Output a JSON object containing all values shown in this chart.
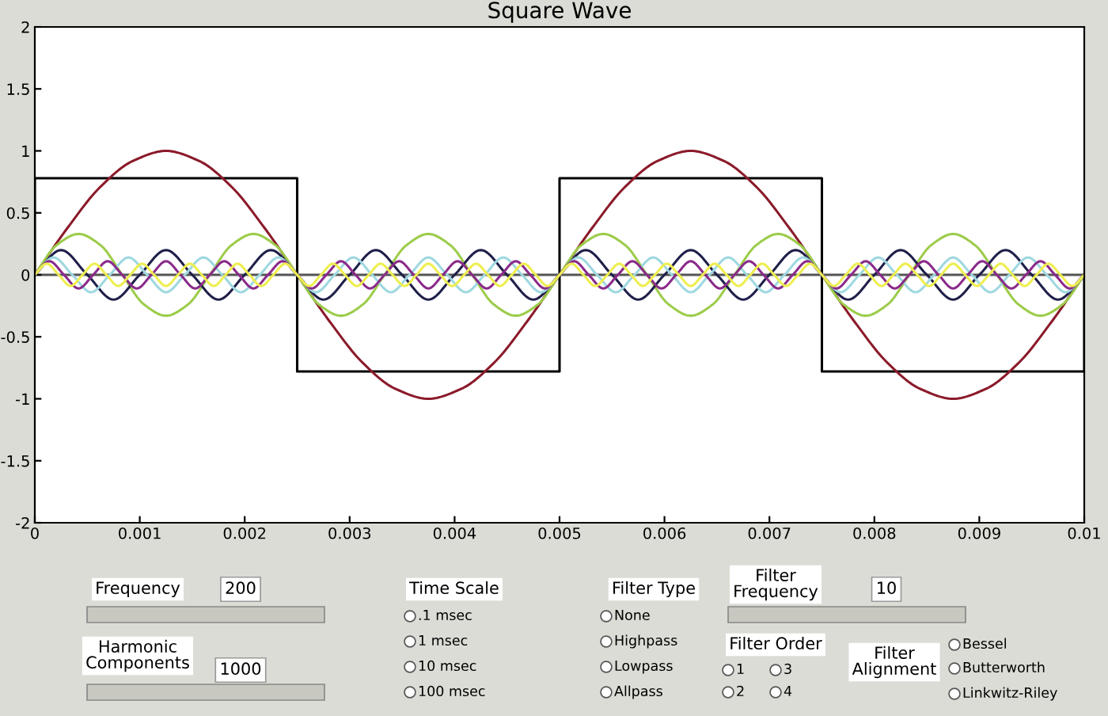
{
  "chart_data": {
    "type": "line",
    "title": "Square Wave",
    "xlim": [
      0,
      0.01
    ],
    "xticks": [
      0,
      0.001,
      0.002,
      0.003,
      0.004,
      0.005,
      0.006,
      0.007,
      0.008,
      0.009,
      0.01
    ],
    "ylim": [
      -2,
      2
    ],
    "yticks": [
      -2,
      -1.5,
      -1,
      -0.5,
      0,
      0.5,
      1,
      1.5,
      2
    ],
    "grid": false,
    "legend": false,
    "ref_lines": [
      {
        "axis": "y",
        "value": 0,
        "color": "#555555"
      }
    ],
    "series": [
      {
        "color": "#000000",
        "x": [
          0,
          0,
          0.0025,
          0.0025,
          0.005,
          0.005,
          0.0075,
          0.0075,
          0.01,
          0.01
        ],
        "values": [
          0,
          0.78,
          0.78,
          -0.78,
          -0.78,
          0.78,
          0.78,
          -0.78,
          -0.78,
          0
        ]
      },
      {
        "color": "#8b1a2a",
        "x": [
          0,
          0.0003125,
          0.000625,
          0.0009375,
          0.00125,
          0.0015625,
          0.001875,
          0.0021875,
          0.0025,
          0.0028125,
          0.003125,
          0.0034375,
          0.00375,
          0.0040625,
          0.004375,
          0.0046875,
          0.005,
          0.0053125,
          0.005625,
          0.0059375,
          0.00625,
          0.0065625,
          0.006875,
          0.0071875,
          0.0075,
          0.0078125,
          0.008125,
          0.0084375,
          0.00875,
          0.0090625,
          0.009375,
          0.0096875,
          0.01
        ],
        "values": [
          0,
          0.38,
          0.71,
          0.92,
          1,
          0.92,
          0.71,
          0.38,
          0,
          -0.38,
          -0.71,
          -0.92,
          -1,
          -0.92,
          -0.71,
          -0.38,
          0,
          0.38,
          0.71,
          0.92,
          1,
          0.92,
          0.71,
          0.38,
          0,
          -0.38,
          -0.71,
          -0.92,
          -1,
          -0.92,
          -0.71,
          -0.38,
          0
        ]
      },
      {
        "color": "#9ccc4a",
        "x": [
          0,
          0.000208,
          0.000417,
          0.000625,
          0.000833,
          0.001042,
          0.00125,
          0.001458,
          0.001667,
          0.001875,
          0.002083,
          0.002292,
          0.0025,
          0.002708,
          0.002917,
          0.003125,
          0.003333,
          0.003542,
          0.00375,
          0.003958,
          0.004167,
          0.004375,
          0.004583,
          0.004792,
          0.005,
          0.005208,
          0.005417,
          0.005625,
          0.005833,
          0.006042,
          0.00625,
          0.006458,
          0.006667,
          0.006875,
          0.007083,
          0.007292,
          0.0075,
          0.007708,
          0.007917,
          0.008125,
          0.008333,
          0.008542,
          0.00875,
          0.008958,
          0.009167,
          0.009375,
          0.009583,
          0.009792,
          0.01
        ],
        "values": [
          0,
          0.24,
          0.33,
          0.24,
          0,
          -0.24,
          -0.33,
          -0.24,
          0,
          0.24,
          0.33,
          0.24,
          0,
          -0.24,
          -0.33,
          -0.24,
          0,
          0.24,
          0.33,
          0.24,
          0,
          -0.24,
          -0.33,
          -0.24,
          0,
          0.24,
          0.33,
          0.24,
          0,
          -0.24,
          -0.33,
          -0.24,
          0,
          0.24,
          0.33,
          0.24,
          0,
          -0.24,
          -0.33,
          -0.24,
          0,
          0.24,
          0.33,
          0.24,
          0,
          -0.24,
          -0.33,
          -0.24,
          0
        ]
      },
      {
        "color": "#1f1f4a",
        "x": [
          0,
          0.00025,
          0.0005,
          0.00075,
          0.001,
          0.00125,
          0.0015,
          0.00175,
          0.002,
          0.00225,
          0.0025,
          0.00275,
          0.003,
          0.00325,
          0.0035,
          0.00375,
          0.004,
          0.00425,
          0.0045,
          0.00475,
          0.005,
          0.00525,
          0.0055,
          0.00575,
          0.006,
          0.00625,
          0.0065,
          0.00675,
          0.007,
          0.00725,
          0.0075,
          0.00775,
          0.008,
          0.00825,
          0.0085,
          0.00875,
          0.009,
          0.00925,
          0.0095,
          0.00975,
          0.01
        ],
        "values": [
          0,
          0.2,
          0,
          -0.2,
          0,
          0.2,
          0,
          -0.2,
          0,
          0.2,
          0,
          -0.2,
          0,
          0.2,
          0,
          -0.2,
          0,
          0.2,
          0,
          -0.2,
          0,
          0.2,
          0,
          -0.2,
          0,
          0.2,
          0,
          -0.2,
          0,
          0.2,
          0,
          -0.2,
          0,
          0.2,
          0,
          -0.2,
          0,
          0.2,
          0,
          -0.2,
          0
        ]
      },
      {
        "color": "#9fd8e0",
        "x": [
          0,
          0.000179,
          0.000357,
          0.000536,
          0.000714,
          0.000893,
          0.001071,
          0.00125,
          0.001429,
          0.001607,
          0.001786,
          0.001964,
          0.002143,
          0.002321,
          0.0025,
          0.002679,
          0.002857,
          0.003036,
          0.003214,
          0.003393,
          0.003571,
          0.00375,
          0.003929,
          0.004107,
          0.004286,
          0.004464,
          0.004643,
          0.004821,
          0.005,
          0.005179,
          0.005357,
          0.005536,
          0.005714,
          0.005893,
          0.006071,
          0.00625,
          0.006429,
          0.006607,
          0.006786,
          0.006964,
          0.007143,
          0.007321,
          0.0075,
          0.007679,
          0.007857,
          0.008036,
          0.008214,
          0.008393,
          0.008571,
          0.00875,
          0.008929,
          0.009107,
          0.009286,
          0.009464,
          0.009643,
          0.009821,
          0.01
        ],
        "values": [
          0,
          0.14,
          0,
          -0.14,
          0,
          0.14,
          0,
          -0.14,
          0,
          0.14,
          0,
          -0.14,
          0,
          0.14,
          0,
          -0.14,
          0,
          0.14,
          0,
          -0.14,
          0,
          0.14,
          0,
          -0.14,
          0,
          0.14,
          0,
          -0.14,
          0,
          0.14,
          0,
          -0.14,
          0,
          0.14,
          0,
          -0.14,
          0,
          0.14,
          0,
          -0.14,
          0,
          0.14,
          0,
          -0.14,
          0,
          0.14,
          0,
          -0.14,
          0,
          0.14,
          0,
          -0.14,
          0,
          0.14,
          0,
          -0.14,
          0
        ]
      },
      {
        "color": "#8a2a8a",
        "x": [
          0,
          0.000139,
          0.000278,
          0.000417,
          0.000556,
          0.000694,
          0.000833,
          0.000972,
          0.001111,
          0.00125,
          0.001389,
          0.001528,
          0.001667,
          0.001806,
          0.001944,
          0.002083,
          0.002222,
          0.002361,
          0.0025,
          0.002639,
          0.002778,
          0.002917,
          0.003056,
          0.003194,
          0.003333,
          0.003472,
          0.003611,
          0.00375,
          0.003889,
          0.004028,
          0.004167,
          0.004306,
          0.004444,
          0.004583,
          0.004722,
          0.004861,
          0.005,
          0.005139,
          0.005278,
          0.005417,
          0.005556,
          0.005694,
          0.005833,
          0.005972,
          0.006111,
          0.00625,
          0.006389,
          0.006528,
          0.006667,
          0.006806,
          0.006944,
          0.007083,
          0.007222,
          0.007361,
          0.0075,
          0.007639,
          0.007778,
          0.007917,
          0.008056,
          0.008194,
          0.008333,
          0.008472,
          0.008611,
          0.00875,
          0.008889,
          0.009028,
          0.009167,
          0.009306,
          0.009444,
          0.009583,
          0.009722,
          0.009861,
          0.01
        ],
        "values": [
          0,
          0.11,
          0,
          -0.11,
          0,
          0.11,
          0,
          -0.11,
          0,
          0.11,
          0,
          -0.11,
          0,
          0.11,
          0,
          -0.11,
          0,
          0.11,
          0,
          -0.11,
          0,
          0.11,
          0,
          -0.11,
          0,
          0.11,
          0,
          -0.11,
          0,
          0.11,
          0,
          -0.11,
          0,
          0.11,
          0,
          -0.11,
          0,
          0.11,
          0,
          -0.11,
          0,
          0.11,
          0,
          -0.11,
          0,
          0.11,
          0,
          -0.11,
          0,
          0.11,
          0,
          -0.11,
          0,
          0.11,
          0,
          -0.11,
          0,
          0.11,
          0,
          -0.11,
          0,
          0.11,
          0,
          -0.11,
          0,
          0.11,
          0,
          -0.11,
          0,
          0.11,
          0,
          -0.11,
          0
        ]
      },
      {
        "color": "#eeee50",
        "x": [
          0,
          0.000114,
          0.000227,
          0.000341,
          0.000455,
          0.000568,
          0.000682,
          0.000795,
          0.000909,
          0.001023,
          0.001136,
          0.00125,
          0.001364,
          0.001477,
          0.001591,
          0.001705,
          0.001818,
          0.001932,
          0.002045,
          0.002159,
          0.002273,
          0.002386,
          0.0025,
          0.002614,
          0.002727,
          0.002841,
          0.002955,
          0.003068,
          0.003182,
          0.003295,
          0.003409,
          0.003523,
          0.003636,
          0.00375,
          0.003864,
          0.003977,
          0.004091,
          0.004205,
          0.004318,
          0.004432,
          0.004545,
          0.004659,
          0.004773,
          0.004886,
          0.005,
          0.005114,
          0.005227,
          0.005341,
          0.005455,
          0.005568,
          0.005682,
          0.005795,
          0.005909,
          0.006023,
          0.006136,
          0.00625,
          0.006364,
          0.006477,
          0.006591,
          0.006705,
          0.006818,
          0.006932,
          0.007045,
          0.007159,
          0.007273,
          0.007386,
          0.0075,
          0.007614,
          0.007727,
          0.007841,
          0.007955,
          0.008068,
          0.008182,
          0.008295,
          0.008409,
          0.008523,
          0.008636,
          0.00875,
          0.008864,
          0.008977,
          0.009091,
          0.009205,
          0.009318,
          0.009432,
          0.009545,
          0.009659,
          0.009773,
          0.009886,
          0.01
        ],
        "values": [
          0,
          0.09,
          0,
          -0.09,
          0,
          0.09,
          0,
          -0.09,
          0,
          0.09,
          0,
          -0.09,
          0,
          0.09,
          0,
          -0.09,
          0,
          0.09,
          0,
          -0.09,
          0,
          0.09,
          0,
          -0.09,
          0,
          0.09,
          0,
          -0.09,
          0,
          0.09,
          0,
          -0.09,
          0,
          0.09,
          0,
          -0.09,
          0,
          0.09,
          0,
          -0.09,
          0,
          0.09,
          0,
          -0.09,
          0,
          0.09,
          0,
          -0.09,
          0,
          0.09,
          0,
          -0.09,
          0,
          0.09,
          0,
          -0.09,
          0,
          0.09,
          0,
          -0.09,
          0,
          0.09,
          0,
          -0.09,
          0,
          0.09,
          0,
          -0.09,
          0,
          0.09,
          0,
          -0.09,
          0,
          0.09,
          0,
          -0.09,
          0,
          0.09,
          0,
          -0.09,
          0,
          0.09,
          0,
          -0.09,
          0,
          0.09,
          0,
          -0.09,
          0
        ]
      }
    ],
    "annotations": [
      "Frequency",
      "200",
      "Harmonic\nComponents",
      "1000",
      "Time Scale",
      ".1 msec",
      "1 msec",
      "10 msec",
      "100 msec",
      "Filter Type",
      "None",
      "Highpass",
      "Lowpass",
      "Allpass",
      "Filter\nFrequency",
      "10",
      "Filter Order",
      "1",
      "3",
      "2",
      "4",
      "Filter\nAlignment",
      "Bessel",
      "Butterworth",
      "Linkwitz-Riley"
    ]
  }
}
